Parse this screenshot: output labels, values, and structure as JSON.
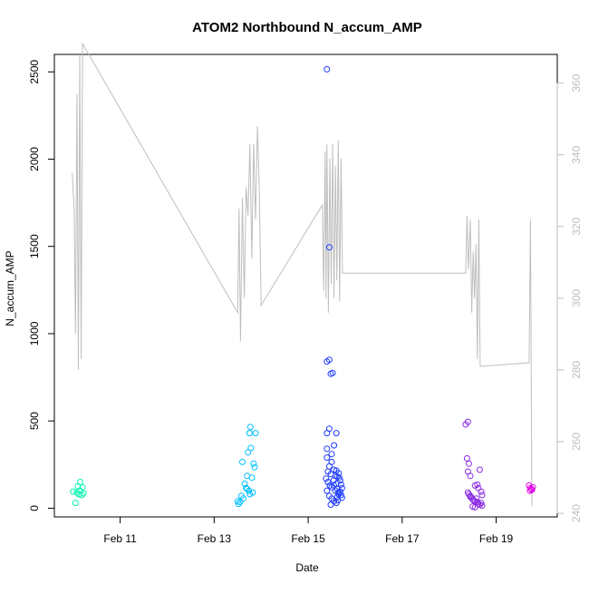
{
  "chart_data": {
    "type": "scatter",
    "title": "ATOM2 Northbound N_accum_AMP",
    "xlabel": "Date",
    "ylabel": "N_accum_AMP",
    "x_ticks": [
      "Feb 11",
      "Feb 13",
      "Feb 15",
      "Feb 17",
      "Feb 19"
    ],
    "x_tick_days": [
      11,
      13,
      15,
      17,
      19
    ],
    "xlim": [
      9.6,
      20.3
    ],
    "y_ticks": [
      0,
      500,
      1000,
      1500,
      2000,
      2500
    ],
    "ylim": [
      -50,
      2600
    ],
    "y2_ticks": [
      240,
      260,
      280,
      300,
      320,
      340,
      360
    ],
    "y2lim": [
      239,
      368
    ],
    "grid": false,
    "point_style": "open-circle",
    "series": [
      {
        "color": "#00f5b0",
        "points": [
          [
            10.0,
            95
          ],
          [
            10.05,
            30
          ],
          [
            10.08,
            90
          ],
          [
            10.1,
            125
          ],
          [
            10.12,
            80
          ],
          [
            10.15,
            150
          ],
          [
            10.18,
            75
          ],
          [
            10.2,
            120
          ],
          [
            10.22,
            85
          ],
          [
            10.14,
            100
          ]
        ]
      },
      {
        "color": "#00bfff",
        "points": [
          [
            13.5,
            40
          ],
          [
            13.52,
            25
          ],
          [
            13.55,
            35
          ],
          [
            13.58,
            70
          ],
          [
            13.6,
            265
          ],
          [
            13.62,
            55
          ],
          [
            13.65,
            140
          ],
          [
            13.68,
            115
          ],
          [
            13.7,
            185
          ],
          [
            13.72,
            320
          ],
          [
            13.74,
            100
          ],
          [
            13.75,
            430
          ],
          [
            13.77,
            465
          ],
          [
            13.78,
            345
          ],
          [
            13.8,
            175
          ],
          [
            13.82,
            90
          ],
          [
            13.84,
            255
          ],
          [
            13.86,
            235
          ],
          [
            13.88,
            430
          ],
          [
            13.7,
            110
          ],
          [
            13.76,
            80
          ]
        ]
      },
      {
        "color": "#1e3cff",
        "points": [
          [
            15.4,
            2515
          ],
          [
            15.45,
            1495
          ],
          [
            15.4,
            840
          ],
          [
            15.45,
            850
          ],
          [
            15.48,
            770
          ],
          [
            15.52,
            775
          ],
          [
            15.4,
            430
          ],
          [
            15.45,
            455
          ],
          [
            15.6,
            430
          ],
          [
            15.4,
            340
          ],
          [
            15.5,
            310
          ],
          [
            15.55,
            360
          ],
          [
            15.4,
            290
          ],
          [
            15.45,
            240
          ],
          [
            15.5,
            265
          ],
          [
            15.42,
            210
          ],
          [
            15.48,
            195
          ],
          [
            15.55,
            220
          ],
          [
            15.6,
            215
          ],
          [
            15.62,
            180
          ],
          [
            15.65,
            200
          ],
          [
            15.38,
            170
          ],
          [
            15.42,
            150
          ],
          [
            15.46,
            130
          ],
          [
            15.5,
            120
          ],
          [
            15.54,
            160
          ],
          [
            15.58,
            185
          ],
          [
            15.6,
            140
          ],
          [
            15.62,
            110
          ],
          [
            15.64,
            90
          ],
          [
            15.66,
            175
          ],
          [
            15.68,
            160
          ],
          [
            15.7,
            135
          ],
          [
            15.72,
            115
          ],
          [
            15.4,
            100
          ],
          [
            15.45,
            70
          ],
          [
            15.5,
            55
          ],
          [
            15.55,
            40
          ],
          [
            15.6,
            30
          ],
          [
            15.62,
            65
          ],
          [
            15.65,
            80
          ],
          [
            15.68,
            95
          ],
          [
            15.7,
            75
          ],
          [
            15.72,
            60
          ],
          [
            15.48,
            20
          ],
          [
            15.55,
            130
          ],
          [
            15.58,
            100
          ],
          [
            15.63,
            45
          ]
        ]
      },
      {
        "color": "#8a2be2",
        "points": [
          [
            18.35,
            480
          ],
          [
            18.4,
            495
          ],
          [
            18.38,
            285
          ],
          [
            18.42,
            255
          ],
          [
            18.4,
            210
          ],
          [
            18.45,
            185
          ],
          [
            18.6,
            135
          ],
          [
            18.65,
            220
          ],
          [
            18.55,
            130
          ],
          [
            18.62,
            115
          ],
          [
            18.68,
            95
          ],
          [
            18.7,
            75
          ],
          [
            18.4,
            90
          ],
          [
            18.45,
            70
          ],
          [
            18.48,
            60
          ],
          [
            18.5,
            50
          ],
          [
            18.52,
            45
          ],
          [
            18.55,
            40
          ],
          [
            18.58,
            55
          ],
          [
            18.6,
            35
          ],
          [
            18.62,
            25
          ],
          [
            18.65,
            20
          ],
          [
            18.68,
            30
          ],
          [
            18.7,
            15
          ],
          [
            18.55,
            5
          ],
          [
            18.5,
            10
          ],
          [
            18.45,
            65
          ],
          [
            18.42,
            80
          ]
        ]
      },
      {
        "color": "#e100e6",
        "points": [
          [
            19.7,
            130
          ],
          [
            19.73,
            115
          ],
          [
            19.76,
            105
          ],
          [
            19.72,
            100
          ],
          [
            19.78,
            120
          ],
          [
            19.75,
            110
          ]
        ]
      }
    ],
    "secondary_line": {
      "color": "#bebebe",
      "axis": "right",
      "points": [
        [
          9.98,
          335
        ],
        [
          10.02,
          325
        ],
        [
          10.05,
          290
        ],
        [
          10.08,
          357
        ],
        [
          10.11,
          280
        ],
        [
          10.14,
          368
        ],
        [
          10.17,
          283
        ],
        [
          10.2,
          371
        ],
        [
          13.5,
          296
        ],
        [
          13.53,
          325
        ],
        [
          13.56,
          288
        ],
        [
          13.6,
          328
        ],
        [
          13.64,
          300
        ],
        [
          13.68,
          331
        ],
        [
          13.72,
          323
        ],
        [
          13.76,
          343
        ],
        [
          13.8,
          311
        ],
        [
          13.84,
          343
        ],
        [
          13.88,
          322
        ],
        [
          13.92,
          348
        ],
        [
          13.96,
          331
        ],
        [
          14.0,
          298
        ],
        [
          15.3,
          326
        ],
        [
          15.33,
          302
        ],
        [
          15.36,
          341
        ],
        [
          15.38,
          300
        ],
        [
          15.4,
          343
        ],
        [
          15.43,
          296
        ],
        [
          15.46,
          339
        ],
        [
          15.49,
          304
        ],
        [
          15.52,
          343
        ],
        [
          15.55,
          300
        ],
        [
          15.58,
          337
        ],
        [
          15.61,
          305
        ],
        [
          15.64,
          344
        ],
        [
          15.67,
          299
        ],
        [
          15.7,
          339
        ],
        [
          15.73,
          307
        ],
        [
          18.35,
          307
        ],
        [
          18.38,
          323
        ],
        [
          18.41,
          308
        ],
        [
          18.45,
          322
        ],
        [
          18.48,
          296
        ],
        [
          18.51,
          313
        ],
        [
          18.54,
          300
        ],
        [
          18.57,
          315
        ],
        [
          18.6,
          283
        ],
        [
          18.63,
          322
        ],
        [
          18.66,
          281
        ],
        [
          19.7,
          282
        ],
        [
          19.73,
          322
        ],
        [
          19.76,
          242
        ]
      ]
    }
  }
}
